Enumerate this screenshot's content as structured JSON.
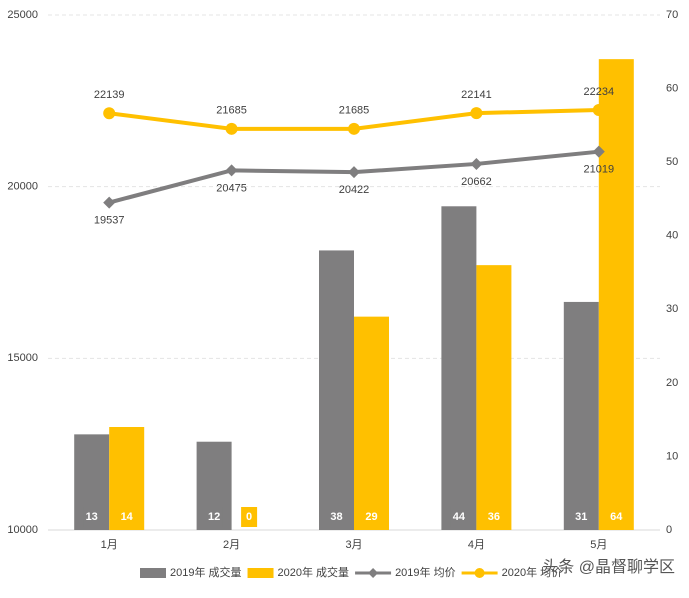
{
  "chart_data": {
    "type": "combo",
    "categories": [
      "1月",
      "2月",
      "3月",
      "4月",
      "5月"
    ],
    "series": [
      {
        "name": "2019年 成交量",
        "type": "bar",
        "axis": "y2",
        "color": "#7f7e7f",
        "values": [
          13,
          12,
          38,
          44,
          31
        ]
      },
      {
        "name": "2020年 成交量",
        "type": "bar",
        "axis": "y2",
        "color": "#ffc000",
        "values": [
          14,
          0,
          29,
          36,
          64
        ]
      },
      {
        "name": "2019年 均价",
        "type": "line",
        "color": "#7f7e7f",
        "marker": "diamond",
        "label_position": "below",
        "values": [
          19537,
          20475,
          20422,
          20662,
          21019
        ]
      },
      {
        "name": "2020年 均价",
        "type": "line",
        "color": "#ffc000",
        "marker": "circle",
        "label_position": "above",
        "values": [
          22139,
          21685,
          21685,
          22141,
          22234
        ]
      }
    ],
    "ylim": [
      10000,
      25000
    ],
    "yticks": [
      10000,
      15000,
      20000,
      25000
    ],
    "y2lim": [
      0,
      70
    ],
    "y2ticks": [
      0,
      10,
      20,
      30,
      40,
      50,
      60,
      70
    ],
    "grid": true,
    "legend": "bottom",
    "watermark": "头条 @晶督聊学区"
  }
}
